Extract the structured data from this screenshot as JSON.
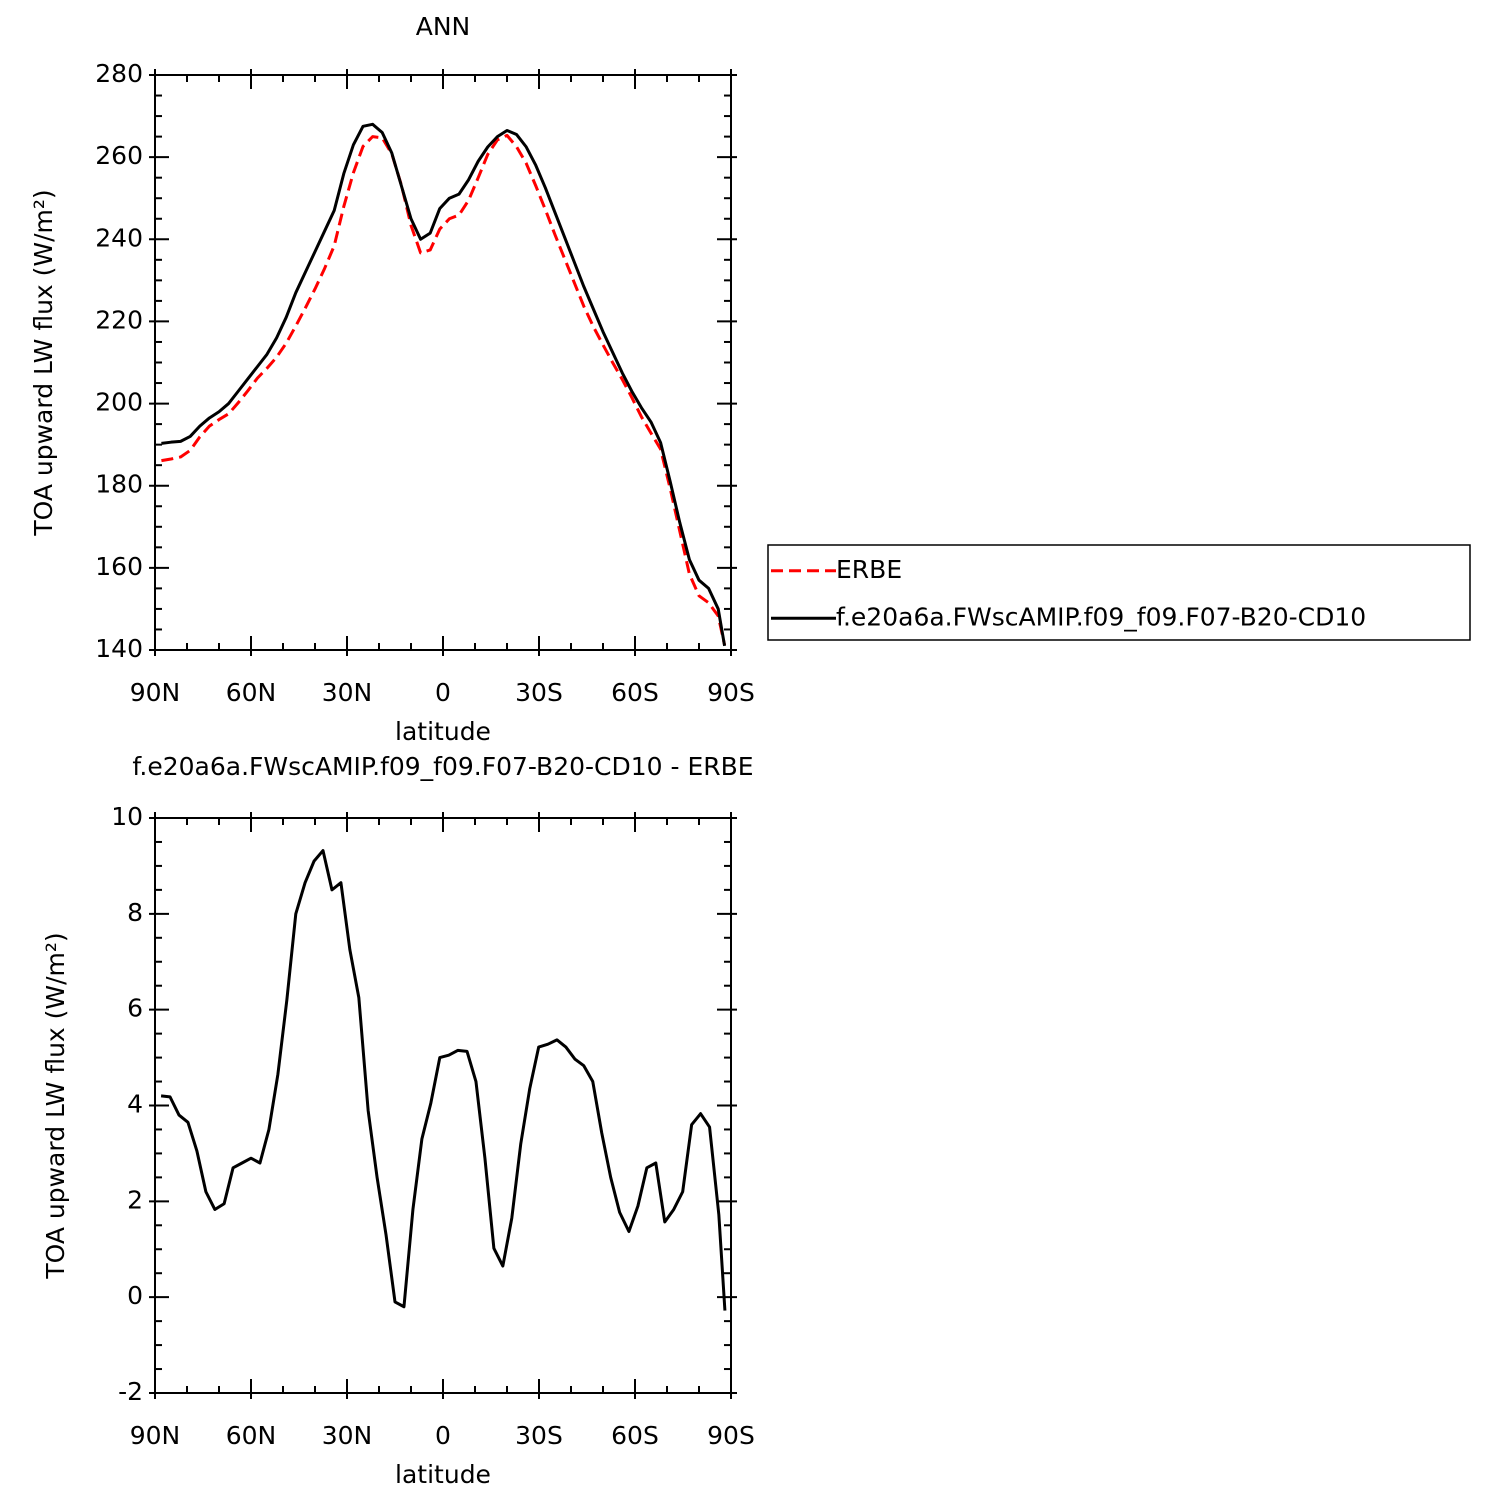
{
  "chart_data": [
    {
      "type": "line",
      "title": "ANN",
      "xlabel": "latitude",
      "ylabel": "TOA upward LW flux (W/m²)",
      "x": [
        88,
        85,
        82,
        79,
        76,
        73,
        70,
        67,
        64,
        61,
        58,
        55,
        52,
        49,
        46,
        43,
        40,
        37,
        34,
        31,
        28,
        25,
        22,
        19,
        16,
        13,
        10,
        7,
        4,
        1,
        -2,
        -5,
        -8,
        -11,
        -14,
        -17,
        -20,
        -23,
        -26,
        -29,
        -32,
        -35,
        -38,
        -41,
        -44,
        -47,
        -50,
        -53,
        -56,
        -59,
        -62,
        -65,
        -68,
        -71,
        -74,
        -77,
        -80,
        -83,
        -86,
        -88
      ],
      "series": [
        {
          "name": "ERBE",
          "color": "#ff0000",
          "line_style": "dashed",
          "values": [
            186.1,
            186.5,
            187.0,
            188.6,
            191.9,
            194.5,
            196.1,
            197.5,
            200.2,
            203.1,
            206.2,
            208.6,
            211.3,
            214.7,
            218.9,
            223.3,
            227.9,
            232.9,
            238.4,
            248.0,
            256.2,
            262.6,
            265.0,
            264.7,
            260.8,
            253.2,
            243.4,
            236.7,
            237.4,
            242.5,
            245.0,
            245.9,
            249.5,
            255.0,
            260.7,
            264.2,
            265.3,
            262.5,
            258.5,
            253.0,
            247.2,
            241.1,
            235.3,
            229.5,
            223.7,
            218.7,
            214.3,
            210.0,
            205.9,
            201.5,
            196.8,
            192.8,
            188.9,
            179.3,
            168.9,
            158.5,
            153.2,
            151.5,
            148.3,
            141.2
          ]
        },
        {
          "name": "f.e20a6a.FWscAMIP.f09_f09.F07-B20-CD10",
          "color": "#000000",
          "line_style": "solid",
          "values": [
            190.3,
            190.6,
            190.8,
            192.0,
            194.5,
            196.5,
            198.0,
            200.0,
            203.0,
            206.0,
            209.0,
            212.0,
            216.0,
            221.0,
            227.0,
            232.0,
            237.0,
            242.0,
            247.0,
            256.0,
            263.0,
            267.5,
            268.0,
            266.0,
            261.0,
            253.0,
            245.0,
            240.0,
            241.5,
            247.5,
            250.0,
            251.0,
            254.5,
            259.0,
            262.5,
            265.0,
            266.5,
            265.5,
            262.5,
            258.0,
            252.5,
            246.5,
            240.5,
            234.5,
            228.5,
            223.0,
            217.5,
            212.5,
            207.5,
            203.0,
            199.0,
            195.5,
            190.5,
            181.0,
            171.0,
            162.0,
            157.0,
            155.0,
            150.0,
            141.0
          ]
        }
      ],
      "xlim": [
        90,
        -90
      ],
      "xticks": [
        {
          "value": 90,
          "label": "90N"
        },
        {
          "value": 60,
          "label": "60N"
        },
        {
          "value": 30,
          "label": "30N"
        },
        0,
        {
          "value": -30,
          "label": "30S"
        },
        {
          "value": -60,
          "label": "60S"
        },
        {
          "value": -90,
          "label": "90S"
        }
      ],
      "ylim": [
        140,
        280
      ],
      "yticks": [
        140,
        160,
        180,
        200,
        220,
        240,
        260,
        280
      ],
      "legend": "right"
    },
    {
      "type": "line",
      "title": "f.e20a6a.FWscAMIP.f09_f09.F07-B20-CD10 - ERBE",
      "xlabel": "latitude",
      "ylabel": "TOA upward LW flux (W/m²)",
      "x": [
        88.1,
        85.3,
        82.5,
        79.7,
        76.9,
        74.1,
        71.3,
        68.4,
        65.6,
        62.8,
        60.0,
        57.2,
        54.4,
        51.6,
        48.8,
        46.0,
        43.1,
        40.3,
        37.5,
        34.7,
        31.9,
        29.1,
        26.3,
        23.4,
        20.6,
        17.8,
        15.0,
        12.2,
        9.4,
        6.6,
        3.8,
        1.0,
        -1.8,
        -4.6,
        -7.5,
        -10.3,
        -13.1,
        -15.9,
        -18.7,
        -21.5,
        -24.3,
        -27.1,
        -29.9,
        -32.8,
        -35.6,
        -38.4,
        -41.2,
        -44.0,
        -46.8,
        -49.6,
        -52.4,
        -55.2,
        -58.1,
        -60.9,
        -63.7,
        -66.5,
        -69.3,
        -72.1,
        -74.9,
        -77.7,
        -80.5,
        -83.3,
        -86.2,
        -88.1
      ],
      "values": [
        4.2,
        4.18,
        3.8,
        3.65,
        3.05,
        2.2,
        1.83,
        1.95,
        2.7,
        2.8,
        2.9,
        2.8,
        3.5,
        4.65,
        6.2,
        8.0,
        8.65,
        9.1,
        9.32,
        8.5,
        8.65,
        7.25,
        6.25,
        3.9,
        2.5,
        1.3,
        -0.1,
        -0.2,
        1.83,
        3.3,
        4.05,
        5.0,
        5.05,
        5.15,
        5.13,
        4.5,
        2.9,
        1.02,
        0.65,
        1.65,
        3.2,
        4.35,
        5.22,
        5.28,
        5.37,
        5.22,
        4.97,
        4.83,
        4.5,
        3.43,
        2.5,
        1.77,
        1.37,
        1.9,
        2.7,
        2.8,
        1.57,
        1.83,
        2.2,
        3.6,
        3.83,
        3.55,
        1.72,
        -0.28
      ],
      "color": "#000000",
      "xlim": [
        90,
        -90
      ],
      "xticks": [
        {
          "value": 90,
          "label": "90N"
        },
        {
          "value": 60,
          "label": "60N"
        },
        {
          "value": 30,
          "label": "30N"
        },
        0,
        {
          "value": -30,
          "label": "30S"
        },
        {
          "value": -60,
          "label": "60S"
        },
        {
          "value": -90,
          "label": "90S"
        }
      ],
      "ylim": [
        -2,
        10
      ],
      "yticks": [
        -2,
        0,
        2,
        4,
        6,
        8,
        10
      ]
    }
  ]
}
